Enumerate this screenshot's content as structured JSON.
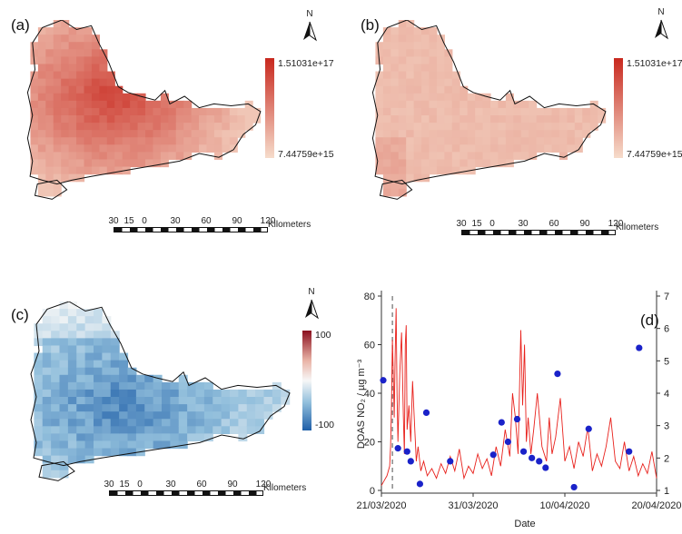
{
  "panels": {
    "a": {
      "label": "(a)",
      "cbar_max": "1.51031e+17",
      "cbar_min": "7.44759e+15"
    },
    "b": {
      "label": "(b)",
      "cbar_max": "1.51031e+17",
      "cbar_min": "7.44759e+15"
    },
    "c": {
      "label": "(c)",
      "cbar_max": "100",
      "cbar_min": "-100"
    },
    "d": {
      "label": "(d)"
    }
  },
  "north_label": "N",
  "scalebar": {
    "ticks": [
      "30",
      "15",
      "0",
      "30",
      "60",
      "90",
      "120"
    ],
    "unit": "Kilometers"
  },
  "colors": {
    "map_low": "#f6dccb",
    "map_high": "#c8281e",
    "div_low": "#1f5fa8",
    "div_mid": "#f7f7f7",
    "div_high": "#8b0f1f",
    "line": "#e8201b",
    "dots": "#1a22c9"
  },
  "chart_data": {
    "type": "line",
    "ylabel": "DOAS NO₂ / µg m⁻³",
    "xlabel": "Date",
    "ylim": [
      0,
      80
    ],
    "y_ticks": [
      0,
      20,
      40,
      60,
      80
    ],
    "y2lim": [
      1,
      7
    ],
    "y2_ticks": [
      1,
      2,
      3,
      4,
      5,
      6,
      7
    ],
    "x_ticks": [
      "21/03/2020",
      "31/03/2020",
      "10/04/2020",
      "20/04/2020"
    ],
    "xlim_days": [
      0,
      30
    ],
    "dashed_line_day": 1.2,
    "line_series": {
      "x_days": [
        0,
        0.3,
        0.6,
        0.9,
        1.0,
        1.1,
        1.2,
        1.3,
        1.4,
        1.5,
        1.6,
        1.7,
        1.8,
        2.0,
        2.2,
        2.4,
        2.5,
        2.6,
        2.7,
        2.8,
        3.0,
        3.2,
        3.4,
        3.6,
        3.8,
        4.0,
        4.3,
        4.6,
        5.0,
        5.5,
        6,
        6.5,
        7,
        7.5,
        8,
        8.5,
        9,
        9.5,
        10,
        10.5,
        11,
        11.5,
        12,
        12.5,
        13,
        13.5,
        14,
        14.3,
        14.6,
        14.9,
        15.2,
        15.4,
        15.6,
        15.8,
        16,
        16.3,
        16.6,
        17,
        17.5,
        18,
        18.3,
        18.6,
        19,
        19.5,
        20,
        20.5,
        21,
        21.5,
        22,
        22.5,
        23,
        23.5,
        24,
        24.5,
        25,
        25.5,
        26,
        26.5,
        27,
        27.5,
        28,
        28.5,
        29,
        29.5,
        30
      ],
      "values": [
        2,
        4,
        6,
        10,
        18,
        35,
        62,
        48,
        30,
        55,
        75,
        40,
        20,
        48,
        65,
        30,
        15,
        60,
        68,
        25,
        35,
        20,
        45,
        28,
        12,
        18,
        8,
        12,
        6,
        9,
        5,
        11,
        7,
        14,
        8,
        17,
        5,
        10,
        7,
        15,
        9,
        13,
        6,
        18,
        10,
        25,
        14,
        40,
        30,
        15,
        66,
        35,
        60,
        20,
        30,
        15,
        25,
        40,
        18,
        12,
        30,
        15,
        22,
        38,
        12,
        18,
        9,
        20,
        14,
        26,
        8,
        15,
        10,
        18,
        30,
        12,
        9,
        20,
        8,
        14,
        6,
        11,
        7,
        16,
        5
      ]
    },
    "dot_series": {
      "x_days": [
        0.2,
        1.8,
        2.8,
        3.2,
        4.2,
        4.9,
        7.5,
        12.2,
        13.1,
        13.8,
        14.8,
        15.5,
        16.4,
        17.2,
        17.9,
        19.2,
        21.0,
        22.6,
        27.0,
        28.1
      ],
      "values": [
        4.4,
        2.3,
        2.2,
        1.9,
        1.2,
        3.4,
        1.9,
        2.1,
        3.1,
        2.5,
        3.2,
        2.2,
        2.0,
        1.9,
        1.7,
        4.6,
        1.1,
        2.9,
        2.2,
        5.4
      ]
    }
  }
}
